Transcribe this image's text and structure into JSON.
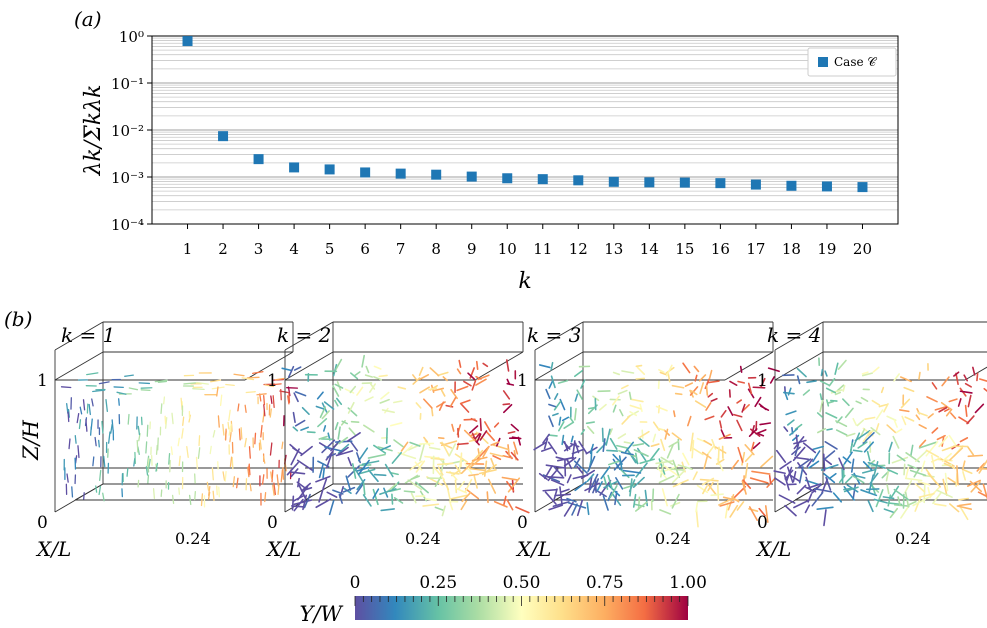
{
  "panel_a": {
    "label": "(a)",
    "ylabel": "λk/Σkλk",
    "xlabel": "k",
    "legend": "Case 𝒞",
    "color": "#1f77b4",
    "chart_data": {
      "type": "scatter",
      "x": [
        1,
        2,
        3,
        4,
        5,
        6,
        7,
        8,
        9,
        10,
        11,
        12,
        13,
        14,
        15,
        16,
        17,
        18,
        19,
        20
      ],
      "y": [
        0.78,
        0.0074,
        0.0024,
        0.0016,
        0.00145,
        0.00125,
        0.00118,
        0.00112,
        0.00102,
        0.00094,
        0.0009,
        0.00085,
        0.00079,
        0.00077,
        0.00076,
        0.00074,
        0.00069,
        0.00065,
        0.00063,
        0.00061
      ],
      "yscale": "log",
      "ylim": [
        0.0001,
        1
      ],
      "xlim": [
        0,
        21
      ],
      "ytick_labels": [
        "10⁰",
        "10⁻¹",
        "10⁻²",
        "10⁻³",
        "10⁻⁴"
      ],
      "xtick_labels": [
        "1",
        "2",
        "3",
        "4",
        "5",
        "6",
        "7",
        "8",
        "9",
        "10",
        "11",
        "12",
        "13",
        "14",
        "15",
        "16",
        "17",
        "18",
        "19",
        "20"
      ],
      "series": [
        {
          "name": "Case 𝒞"
        }
      ],
      "grid": true,
      "legend_position": "top-right"
    }
  },
  "panel_b": {
    "label": "(b)",
    "zlabel": "Z/H",
    "z_top": "1",
    "z_bottom": "0",
    "xaxis_label": "X/L",
    "xaxis_tick": "0.24",
    "modes": [
      {
        "title": "k = 1"
      },
      {
        "title": "k = 2"
      },
      {
        "title": "k = 3"
      },
      {
        "title": "k = 4"
      }
    ]
  },
  "colorbar": {
    "label": "Y/W",
    "ticks": [
      "0",
      "0.25",
      "0.50",
      "0.75",
      "1.00"
    ]
  }
}
